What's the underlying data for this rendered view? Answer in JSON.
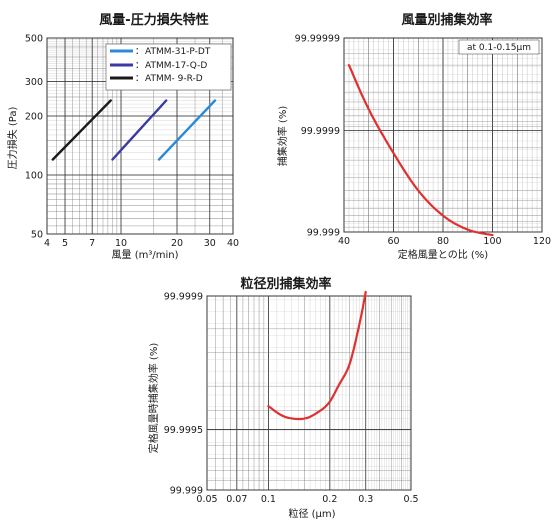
{
  "chart_data": [
    {
      "type": "line",
      "title": "風量-圧力損失特性",
      "xlabel": "風量 (m³/min)",
      "ylabel": "圧力損失 (Pa)",
      "x_scale": "log",
      "y_scale": "log",
      "xlim": [
        4,
        40
      ],
      "ylim": [
        50,
        500
      ],
      "x_ticks": [
        "4",
        "5",
        "7",
        "10",
        "20",
        "30",
        "40"
      ],
      "x_tick_values": [
        4,
        5,
        7,
        10,
        20,
        30,
        40
      ],
      "y_ticks": [
        "50",
        "100",
        "200",
        "300",
        "500"
      ],
      "y_tick_values": [
        50,
        100,
        200,
        300,
        500
      ],
      "grid": true,
      "legend_position": "top-right",
      "legend_prefix": "：",
      "series": [
        {
          "name": "ATMM-31-P-DT",
          "color": "#2b8ad8",
          "x": [
            16,
            32
          ],
          "y": [
            120,
            240
          ]
        },
        {
          "name": "ATMM-17-Q-D",
          "color": "#3a3aa0",
          "x": [
            9,
            17.5
          ],
          "y": [
            120,
            240
          ]
        },
        {
          "name": "ATMM- 9-R-D",
          "color": "#1a1a1a",
          "x": [
            4.3,
            8.8
          ],
          "y": [
            120,
            240
          ]
        }
      ]
    },
    {
      "type": "line",
      "title": "風量別捕集効率",
      "xlabel": "定格風量との比 (%)",
      "ylabel": "捕集効率 (%)",
      "x_scale": "linear",
      "y_scale": "probit",
      "xlim": [
        40,
        120
      ],
      "x_ticks": [
        "40",
        "60",
        "80",
        "100",
        "120"
      ],
      "x_tick_values": [
        40,
        60,
        80,
        100,
        120
      ],
      "y_ticks": [
        "99.99999",
        "99.9999",
        "99.999"
      ],
      "grid": true,
      "annotation": "at 0.1-0.15μm",
      "series": [
        {
          "color": "#e03030",
          "x": [
            42,
            50,
            60,
            70,
            80,
            90,
            100
          ],
          "y": [
            99.99998,
            99.99994,
            99.99983,
            99.9996,
            99.9993,
            99.99905,
            99.99893
          ]
        }
      ]
    },
    {
      "type": "line",
      "title": "粒径別捕集効率",
      "xlabel": "粒径 (μm)",
      "ylabel": "定格風量時捕集効率 (%)",
      "x_scale": "log",
      "y_scale": "probit",
      "xlim": [
        0.05,
        0.5
      ],
      "x_ticks": [
        "0.05",
        "0.07",
        "0.1",
        "0.2",
        "0.3",
        "0.5"
      ],
      "x_tick_values": [
        0.05,
        0.07,
        0.1,
        0.2,
        0.3,
        0.5
      ],
      "y_ticks": [
        "99.9999",
        "99.9995",
        "99.999"
      ],
      "grid": true,
      "series": [
        {
          "color": "#e03030",
          "x": [
            0.1,
            0.12,
            0.15,
            0.18,
            0.2,
            0.22,
            0.25,
            0.28,
            0.3
          ],
          "y": [
            99.99962,
            99.99957,
            99.99956,
            99.9996,
            99.99964,
            99.9997,
            99.99977,
            99.99986,
            99.999905
          ]
        }
      ]
    }
  ]
}
